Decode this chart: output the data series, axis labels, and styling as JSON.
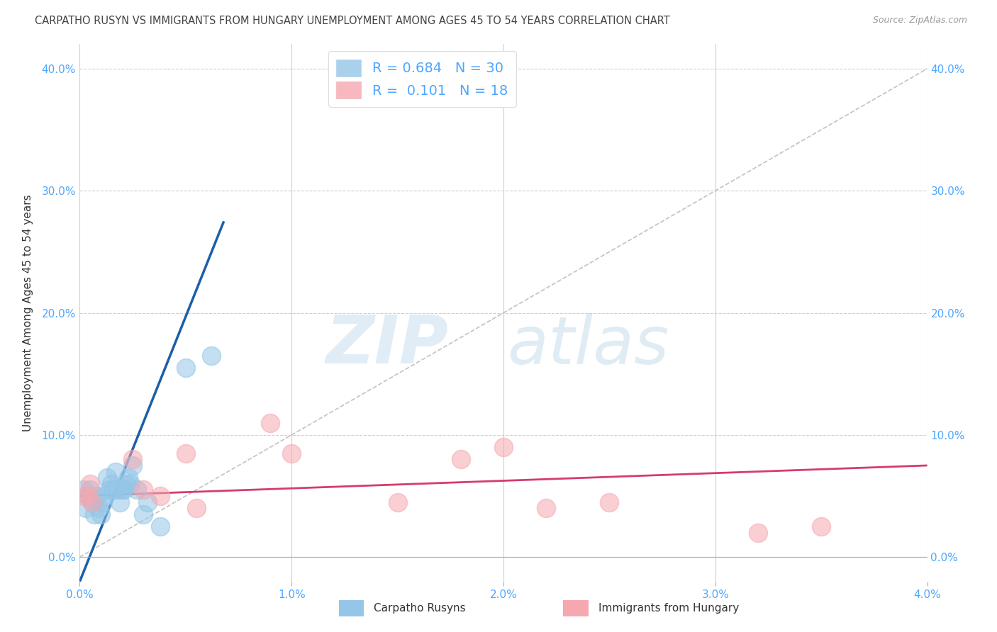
{
  "title": "CARPATHO RUSYN VS IMMIGRANTS FROM HUNGARY UNEMPLOYMENT AMONG AGES 45 TO 54 YEARS CORRELATION CHART",
  "source_text": "Source: ZipAtlas.com",
  "ylabel": "Unemployment Among Ages 45 to 54 years",
  "xlabel_blue": "Carpatho Rusyns",
  "xlabel_pink": "Immigrants from Hungary",
  "R_blue": 0.684,
  "N_blue": 30,
  "R_pink": 0.101,
  "N_pink": 18,
  "blue_color": "#94c6e7",
  "blue_line_color": "#1a5fa8",
  "pink_color": "#f5a8b0",
  "pink_line_color": "#d63c6b",
  "watermark_zip": "ZIP",
  "watermark_atlas": "atlas",
  "xlim": [
    0.0,
    4.0
  ],
  "ylim": [
    -2.0,
    42.0
  ],
  "xlim_display": [
    0.0,
    4.0
  ],
  "ylim_display": [
    0.0,
    40.0
  ],
  "xticks": [
    0.0,
    1.0,
    2.0,
    3.0,
    4.0
  ],
  "yticks": [
    0,
    10,
    20,
    30,
    40
  ],
  "blue_scatter_x": [
    0.02,
    0.03,
    0.04,
    0.05,
    0.06,
    0.07,
    0.08,
    0.09,
    0.1,
    0.11,
    0.12,
    0.13,
    0.14,
    0.15,
    0.16,
    0.17,
    0.18,
    0.19,
    0.2,
    0.21,
    0.22,
    0.23,
    0.24,
    0.25,
    0.27,
    0.3,
    0.32,
    0.38,
    0.5,
    0.62
  ],
  "blue_scatter_y": [
    5.5,
    4.0,
    5.0,
    5.5,
    4.5,
    3.5,
    5.0,
    4.0,
    3.5,
    4.5,
    5.0,
    6.5,
    5.5,
    6.0,
    5.5,
    7.0,
    5.5,
    4.5,
    5.5,
    5.5,
    6.0,
    6.5,
    6.0,
    7.5,
    5.5,
    3.5,
    4.5,
    2.5,
    15.5,
    16.5
  ],
  "blue_line_x": [
    0.0,
    0.68
  ],
  "blue_line_y": [
    -2.0,
    27.5
  ],
  "pink_scatter_x": [
    0.02,
    0.04,
    0.05,
    0.06,
    0.25,
    0.3,
    0.38,
    0.5,
    0.55,
    0.9,
    1.0,
    1.5,
    1.8,
    2.0,
    2.2,
    2.5,
    3.2,
    3.5
  ],
  "pink_scatter_y": [
    5.0,
    5.0,
    6.0,
    4.5,
    8.0,
    5.5,
    5.0,
    8.5,
    4.0,
    11.0,
    8.5,
    4.5,
    8.0,
    9.0,
    4.0,
    4.5,
    2.0,
    2.5
  ],
  "pink_line_x": [
    0.0,
    4.0
  ],
  "pink_line_y": [
    5.0,
    7.5
  ],
  "ref_line_x": [
    0.0,
    4.0
  ],
  "ref_line_y": [
    0.0,
    40.0
  ],
  "background_color": "#ffffff",
  "grid_color": "#d0d0d0",
  "tick_color": "#4da6ff",
  "title_color": "#444444",
  "title_fontsize": 10.5,
  "axis_label_fontsize": 11,
  "tick_fontsize": 11
}
